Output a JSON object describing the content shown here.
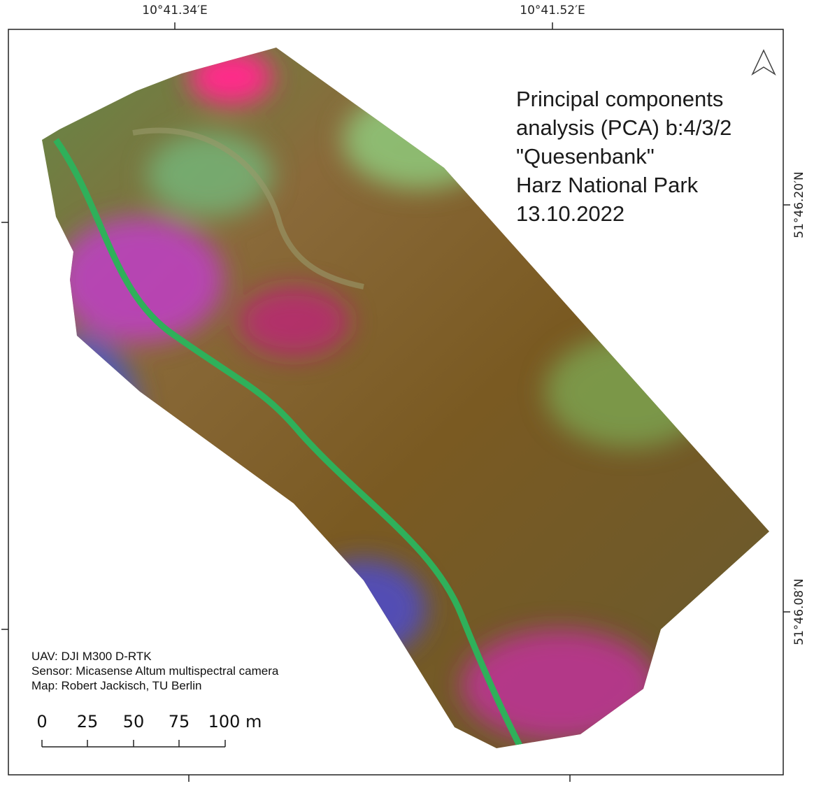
{
  "map": {
    "title_lines": [
      "Principal components",
      "analysis (PCA) b:4/3/2",
      "\"Quesenbank\"",
      "Harz National Park",
      "13.10.2022"
    ],
    "coordinates": {
      "top": [
        "10°41.34′E",
        "10°41.52′E"
      ],
      "right": [
        "51°46.20′N",
        "51°46.08′N"
      ]
    },
    "credits": [
      "UAV: DJI M300 D-RTK",
      "Sensor: Micasense Altum multispectral camera",
      "Map: Robert Jackisch, TU Berlin"
    ],
    "scale_bar": {
      "labels": [
        "0",
        "25",
        "50",
        "75",
        "100 m"
      ]
    }
  }
}
